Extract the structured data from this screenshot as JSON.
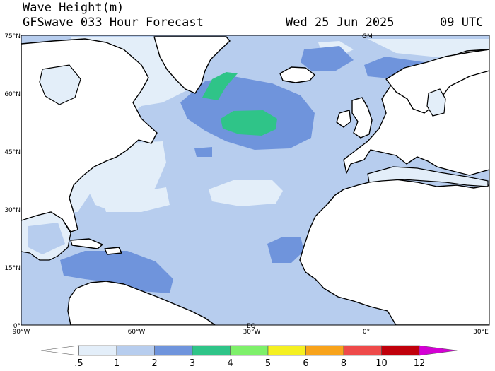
{
  "header": {
    "variable": "Wave Height(m)",
    "model": "GFSwave 033 Hour Forecast",
    "date": "Wed 25 Jun 2025",
    "time": "09 UTC"
  },
  "axes": {
    "lat_labels": [
      "75°N",
      "60°N",
      "45°N",
      "30°N",
      "15°N",
      "0°"
    ],
    "lon_labels": [
      "90°W",
      "60°W",
      "30°W",
      "0°",
      "30°E"
    ],
    "inner_labels": [
      "GM",
      "EQ"
    ]
  },
  "legend": {
    "levels": [
      ".5",
      "1",
      "2",
      "3",
      "4",
      "5",
      "6",
      "8",
      "10",
      "12"
    ],
    "colors": [
      "#ffffff",
      "#e3eef9",
      "#b7cdee",
      "#6f94dc",
      "#2fc488",
      "#7ef06a",
      "#f5f021",
      "#f8a31b",
      "#ee4a4a",
      "#c0000b",
      "#d400d4"
    ]
  },
  "colors": {
    "land": "#ffffff",
    "ocean_base": "#b7cdee",
    "coast": "#000000"
  }
}
